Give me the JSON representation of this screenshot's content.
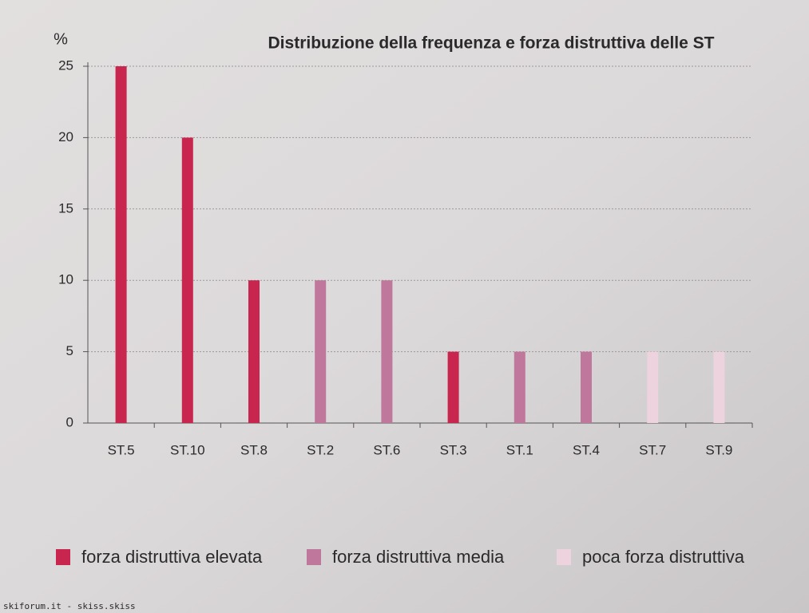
{
  "chart_data": {
    "type": "bar",
    "title": "Distribuzione della frequenza e forza distruttiva delle ST",
    "y_label": "%",
    "categories": [
      "ST.5",
      "ST.10",
      "ST.8",
      "ST.2",
      "ST.6",
      "ST.3",
      "ST.1",
      "ST.4",
      "ST.7",
      "ST.9"
    ],
    "series": [
      {
        "name": "forza distruttiva elevata",
        "color": "#c8264f",
        "values": [
          25,
          20,
          10,
          null,
          null,
          5,
          null,
          null,
          null,
          null
        ]
      },
      {
        "name": "forza distruttiva media",
        "color": "#c0779c",
        "values": [
          null,
          null,
          null,
          10,
          10,
          null,
          5,
          5,
          null,
          null
        ]
      },
      {
        "name": "poca forza distruttiva",
        "color": "#ecd3dd",
        "values": [
          null,
          null,
          null,
          null,
          null,
          null,
          null,
          null,
          5,
          5
        ]
      }
    ],
    "ylim": [
      0,
      25
    ],
    "yticks": [
      0,
      5,
      10,
      15,
      20,
      25
    ],
    "grid": true,
    "watermark": "skiforum.it - skiss.skiss"
  }
}
